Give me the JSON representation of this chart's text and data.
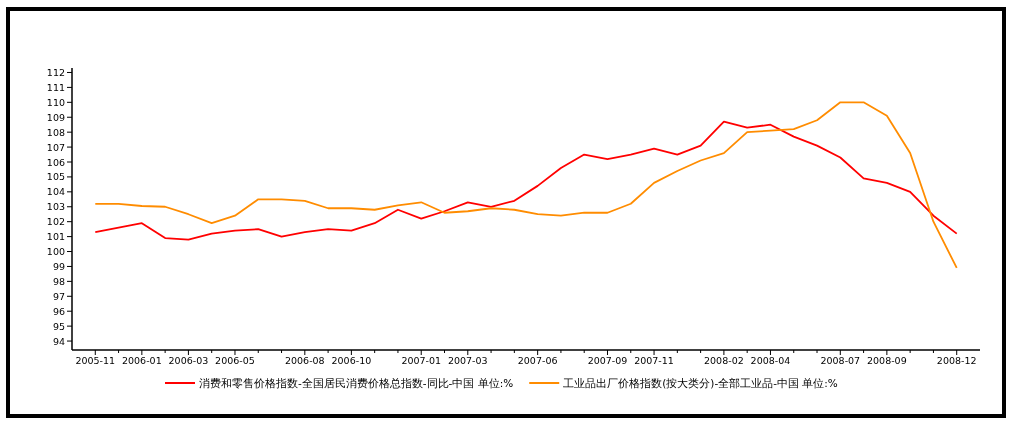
{
  "chart_data": {
    "type": "line",
    "categories": [
      "2005-11",
      null,
      "2006-01",
      null,
      "2006-03",
      null,
      "2006-05",
      null,
      null,
      "2006-08",
      null,
      "2006-10",
      null,
      null,
      "2007-01",
      null,
      "2007-03",
      null,
      null,
      "2007-06",
      null,
      null,
      "2007-09",
      null,
      "2007-11",
      null,
      null,
      "2008-02",
      null,
      "2008-04",
      null,
      null,
      "2008-07",
      null,
      "2008-09",
      null,
      null,
      "2008-12"
    ],
    "series": [
      {
        "name": "消费和零售价格指数-全国居民消费价格总指数-同比-中国 单位:%",
        "color": "#ff0000",
        "values": [
          101.3,
          101.6,
          101.9,
          100.9,
          100.8,
          101.2,
          101.4,
          101.5,
          101.0,
          101.3,
          101.5,
          101.4,
          101.9,
          102.8,
          102.2,
          102.7,
          103.3,
          103.0,
          103.4,
          104.4,
          105.6,
          106.5,
          106.2,
          106.5,
          106.9,
          106.5,
          107.1,
          108.7,
          108.3,
          108.5,
          107.7,
          107.1,
          106.3,
          104.9,
          104.6,
          104.0,
          102.4,
          101.2
        ]
      },
      {
        "name": "工业品出厂价格指数(按大类分)-全部工业品-中国 单位:%",
        "color": "#ff8c00",
        "values": [
          103.2,
          103.2,
          103.05,
          103.0,
          102.5,
          101.9,
          102.4,
          103.5,
          103.5,
          103.4,
          102.9,
          102.9,
          102.8,
          103.1,
          103.3,
          102.6,
          102.7,
          102.9,
          102.8,
          102.5,
          102.4,
          102.6,
          102.6,
          103.2,
          104.6,
          105.4,
          106.1,
          106.6,
          108.0,
          108.1,
          108.2,
          108.8,
          110.0,
          110.0,
          109.1,
          106.6,
          102.0,
          98.9
        ]
      }
    ],
    "ylim": [
      93.4,
      112.3
    ],
    "yticks": [
      94,
      95,
      96,
      97,
      98,
      99,
      100,
      101,
      102,
      103,
      104,
      105,
      106,
      107,
      108,
      109,
      110,
      111,
      112
    ],
    "grid": false,
    "legend": "bottom",
    "marker": "none",
    "line_style": "solid"
  }
}
